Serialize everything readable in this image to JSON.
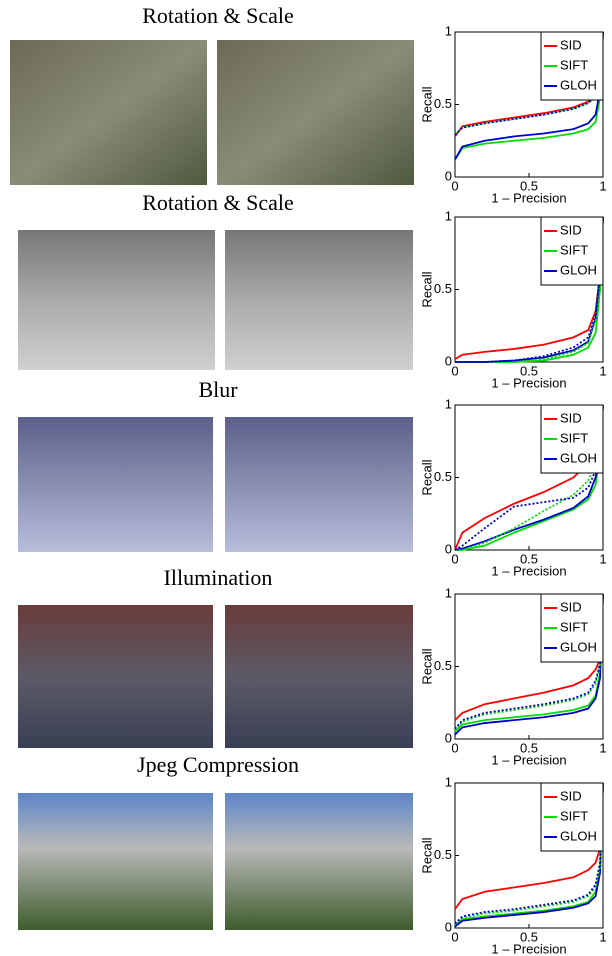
{
  "row_titles": [
    "Rotation & Scale",
    "Rotation & Scale",
    "Blur",
    "Illumination",
    "Jpeg Compression"
  ],
  "chart_data": [
    {
      "type": "line",
      "x_label": "1 – Precision",
      "y_label": "Recall",
      "xlim": [
        0,
        1
      ],
      "ylim": [
        0,
        1
      ],
      "xticks": [
        0,
        0.5,
        1
      ],
      "yticks": [
        0,
        0.5,
        1
      ],
      "legend": "upper right",
      "x": [
        0,
        0.05,
        0.2,
        0.4,
        0.6,
        0.8,
        0.9,
        0.95,
        0.98,
        1
      ],
      "series": [
        {
          "name": "SID",
          "color": "#ff0000",
          "values": [
            0.28,
            0.35,
            0.38,
            0.41,
            0.44,
            0.48,
            0.52,
            0.56,
            0.7,
            1
          ]
        },
        {
          "name": "SIFT",
          "color": "#00dd00",
          "values": [
            0.12,
            0.2,
            0.23,
            0.25,
            0.27,
            0.3,
            0.33,
            0.38,
            0.55,
            1
          ]
        },
        {
          "name": "GLOH",
          "color": "#0000cc",
          "values": [
            0.12,
            0.21,
            0.25,
            0.28,
            0.3,
            0.33,
            0.37,
            0.43,
            0.6,
            1
          ]
        },
        {
          "color": "#00dd00",
          "style": "dotted",
          "values": [
            0.3,
            0.34,
            0.37,
            0.4,
            0.43,
            0.47,
            0.51,
            0.55,
            0.68,
            1
          ]
        },
        {
          "color": "#0000cc",
          "style": "dotted",
          "values": [
            0.29,
            0.34,
            0.37,
            0.4,
            0.43,
            0.47,
            0.51,
            0.56,
            0.7,
            1
          ]
        }
      ]
    },
    {
      "type": "line",
      "x_label": "1 – Precision",
      "y_label": "Recall",
      "xlim": [
        0,
        1
      ],
      "ylim": [
        0,
        1
      ],
      "xticks": [
        0,
        0.5,
        1
      ],
      "yticks": [
        0,
        0.5,
        1
      ],
      "legend": "upper right",
      "x": [
        0,
        0.05,
        0.2,
        0.4,
        0.6,
        0.8,
        0.9,
        0.95,
        0.98,
        1
      ],
      "series": [
        {
          "name": "SID",
          "color": "#ff0000",
          "values": [
            0.02,
            0.05,
            0.07,
            0.09,
            0.12,
            0.17,
            0.22,
            0.35,
            0.6,
            1
          ]
        },
        {
          "name": "SIFT",
          "color": "#00dd00",
          "values": [
            0,
            0,
            0,
            0,
            0.01,
            0.05,
            0.1,
            0.2,
            0.5,
            1
          ]
        },
        {
          "name": "GLOH",
          "color": "#0000cc",
          "values": [
            0,
            0,
            0,
            0.01,
            0.03,
            0.08,
            0.14,
            0.3,
            0.6,
            1
          ]
        },
        {
          "color": "#00dd00",
          "style": "dotted",
          "values": [
            0,
            0,
            0,
            0,
            0.02,
            0.07,
            0.13,
            0.3,
            0.6,
            1
          ]
        },
        {
          "color": "#0000cc",
          "style": "dotted",
          "values": [
            0,
            0,
            0,
            0.01,
            0.04,
            0.1,
            0.17,
            0.33,
            0.62,
            1
          ]
        }
      ]
    },
    {
      "type": "line",
      "x_label": "1 – Precision",
      "y_label": "Recall",
      "xlim": [
        0,
        1
      ],
      "ylim": [
        0,
        1
      ],
      "xticks": [
        0,
        0.5,
        1
      ],
      "yticks": [
        0,
        0.5,
        1
      ],
      "legend": "upper right",
      "x": [
        0,
        0.05,
        0.2,
        0.4,
        0.6,
        0.8,
        0.9,
        0.95,
        0.98,
        1
      ],
      "series": [
        {
          "name": "SID",
          "color": "#ff0000",
          "values": [
            0,
            0.12,
            0.22,
            0.32,
            0.4,
            0.5,
            0.6,
            0.7,
            0.85,
            1
          ]
        },
        {
          "name": "SIFT",
          "color": "#00dd00",
          "values": [
            0,
            0,
            0.03,
            0.12,
            0.2,
            0.28,
            0.35,
            0.45,
            0.65,
            1
          ]
        },
        {
          "name": "GLOH",
          "color": "#0000cc",
          "values": [
            0,
            0.01,
            0.06,
            0.14,
            0.21,
            0.29,
            0.37,
            0.5,
            0.7,
            1
          ]
        },
        {
          "color": "#00dd00",
          "style": "dotted",
          "values": [
            0,
            0,
            0.05,
            0.15,
            0.27,
            0.38,
            0.48,
            0.6,
            0.8,
            1
          ]
        },
        {
          "color": "#0000cc",
          "style": "dotted",
          "values": [
            0,
            0.03,
            0.15,
            0.3,
            0.33,
            0.36,
            0.43,
            0.55,
            0.75,
            1
          ]
        }
      ]
    },
    {
      "type": "line",
      "x_label": "1 – Precision",
      "y_label": "Recall",
      "xlim": [
        0,
        1
      ],
      "ylim": [
        0,
        1
      ],
      "xticks": [
        0,
        0.5,
        1
      ],
      "yticks": [
        0,
        0.5,
        1
      ],
      "legend": "upper right",
      "x": [
        0,
        0.05,
        0.2,
        0.4,
        0.6,
        0.8,
        0.9,
        0.95,
        0.98,
        1
      ],
      "series": [
        {
          "name": "SID",
          "color": "#ff0000",
          "values": [
            0.13,
            0.18,
            0.24,
            0.28,
            0.32,
            0.37,
            0.42,
            0.48,
            0.55,
            1
          ]
        },
        {
          "name": "SIFT",
          "color": "#00dd00",
          "values": [
            0.05,
            0.1,
            0.13,
            0.15,
            0.17,
            0.2,
            0.23,
            0.3,
            0.45,
            1
          ]
        },
        {
          "name": "GLOH",
          "color": "#0000cc",
          "values": [
            0.03,
            0.08,
            0.11,
            0.13,
            0.15,
            0.18,
            0.21,
            0.28,
            0.42,
            1
          ]
        },
        {
          "color": "#00dd00",
          "style": "dotted",
          "values": [
            0.06,
            0.12,
            0.17,
            0.2,
            0.23,
            0.27,
            0.31,
            0.38,
            0.5,
            1
          ]
        },
        {
          "color": "#0000cc",
          "style": "dotted",
          "values": [
            0.07,
            0.13,
            0.18,
            0.21,
            0.24,
            0.28,
            0.32,
            0.4,
            0.52,
            1
          ]
        }
      ]
    },
    {
      "type": "line",
      "x_label": "1 – Precision",
      "y_label": "Recall",
      "xlim": [
        0,
        1
      ],
      "ylim": [
        0,
        1
      ],
      "xticks": [
        0,
        0.5,
        1
      ],
      "yticks": [
        0,
        0.5,
        1
      ],
      "legend": "upper right",
      "x": [
        0,
        0.05,
        0.2,
        0.4,
        0.6,
        0.8,
        0.9,
        0.95,
        0.98,
        1
      ],
      "series": [
        {
          "name": "SID",
          "color": "#ff0000",
          "values": [
            0.13,
            0.2,
            0.25,
            0.28,
            0.31,
            0.35,
            0.4,
            0.45,
            0.55,
            1
          ]
        },
        {
          "name": "SIFT",
          "color": "#00dd00",
          "values": [
            0.02,
            0.06,
            0.08,
            0.1,
            0.12,
            0.15,
            0.18,
            0.25,
            0.4,
            1
          ]
        },
        {
          "name": "GLOH",
          "color": "#0000cc",
          "values": [
            0.01,
            0.05,
            0.07,
            0.09,
            0.11,
            0.14,
            0.17,
            0.22,
            0.38,
            1
          ]
        },
        {
          "color": "#00dd00",
          "style": "dotted",
          "values": [
            0.03,
            0.07,
            0.1,
            0.12,
            0.15,
            0.18,
            0.22,
            0.28,
            0.42,
            1
          ]
        },
        {
          "color": "#0000cc",
          "style": "dotted",
          "values": [
            0.03,
            0.08,
            0.11,
            0.13,
            0.16,
            0.19,
            0.23,
            0.3,
            0.45,
            1
          ]
        }
      ]
    }
  ]
}
